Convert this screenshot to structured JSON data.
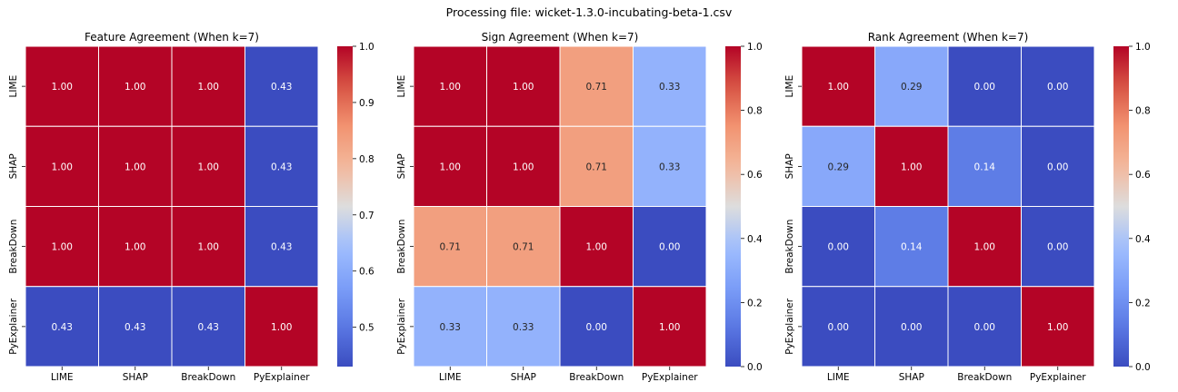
{
  "figure": {
    "suptitle": "Processing file: wicket-1.3.0-incubating-beta-1.csv"
  },
  "chart_data": [
    {
      "type": "heatmap",
      "title": "Feature Agreement (When k=7)",
      "xlabel": "",
      "ylabel": "",
      "x_categories": [
        "LIME",
        "SHAP",
        "BreakDown",
        "PyExplainer"
      ],
      "y_categories": [
        "LIME",
        "SHAP",
        "BreakDown",
        "PyExplainer"
      ],
      "values": [
        [
          1.0,
          1.0,
          1.0,
          0.43
        ],
        [
          1.0,
          1.0,
          1.0,
          0.43
        ],
        [
          1.0,
          1.0,
          1.0,
          0.43
        ],
        [
          0.43,
          0.43,
          0.43,
          1.0
        ]
      ],
      "value_format": "0.00",
      "colormap": "coolwarm",
      "colorbar": {
        "vmin": 0.43,
        "vmax": 1.0,
        "ticks": [
          "0.5",
          "0.6",
          "0.7",
          "0.8",
          "0.9",
          "1.0"
        ]
      }
    },
    {
      "type": "heatmap",
      "title": "Sign Agreement (When k=7)",
      "xlabel": "",
      "ylabel": "",
      "x_categories": [
        "LIME",
        "SHAP",
        "BreakDown",
        "PyExplainer"
      ],
      "y_categories": [
        "LIME",
        "SHAP",
        "BreakDown",
        "PyExplainer"
      ],
      "values": [
        [
          1.0,
          1.0,
          0.71,
          0.33
        ],
        [
          1.0,
          1.0,
          0.71,
          0.33
        ],
        [
          0.71,
          0.71,
          1.0,
          0.0
        ],
        [
          0.33,
          0.33,
          0.0,
          1.0
        ]
      ],
      "value_format": "0.00",
      "colormap": "coolwarm",
      "colorbar": {
        "vmin": 0.0,
        "vmax": 1.0,
        "ticks": [
          "0.0",
          "0.2",
          "0.4",
          "0.6",
          "0.8",
          "1.0"
        ]
      }
    },
    {
      "type": "heatmap",
      "title": "Rank Agreement (When k=7)",
      "xlabel": "",
      "ylabel": "",
      "x_categories": [
        "LIME",
        "SHAP",
        "BreakDown",
        "PyExplainer"
      ],
      "y_categories": [
        "LIME",
        "SHAP",
        "BreakDown",
        "PyExplainer"
      ],
      "values": [
        [
          1.0,
          0.29,
          0.0,
          0.0
        ],
        [
          0.29,
          1.0,
          0.14,
          0.0
        ],
        [
          0.0,
          0.14,
          1.0,
          0.0
        ],
        [
          0.0,
          0.0,
          0.0,
          1.0
        ]
      ],
      "value_format": "0.00",
      "colormap": "coolwarm",
      "colorbar": {
        "vmin": 0.0,
        "vmax": 1.0,
        "ticks": [
          "0.0",
          "0.2",
          "0.4",
          "0.6",
          "0.8",
          "1.0"
        ]
      }
    }
  ]
}
